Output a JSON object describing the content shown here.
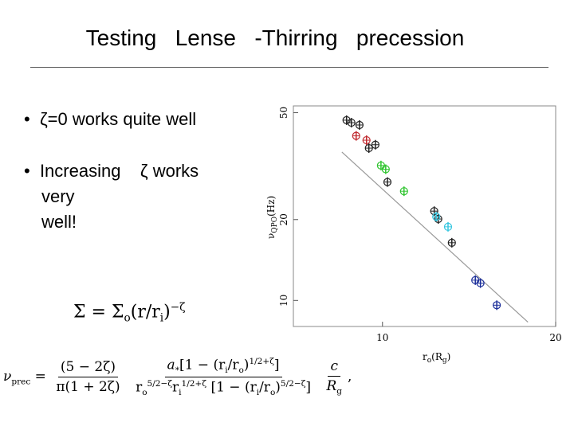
{
  "header": {
    "title": "Testing   Lense   -Thirring   precession"
  },
  "bullets": [
    {
      "lines": [
        "ζ=0 works quite well"
      ]
    },
    {
      "lines": [
        "Increasing    ζ works",
        "very",
        "well!"
      ]
    }
  ],
  "equation_1": {
    "parts": [
      "Σ = Σ",
      "o",
      "(r/r",
      "i",
      ")",
      "−ζ"
    ]
  },
  "equation_2": {
    "lhs": [
      "ν",
      "prec"
    ],
    "eq": "=",
    "frac1": {
      "num": "(5 − 2ζ)",
      "den": "π(1 + 2ζ)"
    },
    "frac2": {
      "num": [
        "a",
        "*",
        "[1 − (r",
        "i",
        "/r",
        "o",
        ")",
        "1/2+ζ",
        "]"
      ],
      "den": [
        "r",
        "o",
        "5/2−ζ",
        "r",
        "i",
        "1/2+ζ",
        "[1 − (r",
        "i",
        "/r",
        "o",
        ")",
        "5/2−ζ",
        "]"
      ]
    },
    "frac3": {
      "num": "c",
      "den": [
        "R",
        "g"
      ]
    },
    "tail": ","
  },
  "chart_data": {
    "type": "scatter",
    "xlabel": [
      "r",
      "o",
      "(R",
      "g",
      ")"
    ],
    "ylabel": [
      "ν",
      "QPO",
      "(Hz)"
    ],
    "xscale": "log",
    "yscale": "log",
    "xlim": [
      7,
      20
    ],
    "ylim": [
      8,
      53
    ],
    "xticks": [
      10,
      20
    ],
    "yticks": [
      10,
      20,
      50
    ],
    "series": [
      {
        "color": "#222222",
        "x": [
          8.66,
          8.83,
          9.12,
          9.47,
          9.72,
          10.2,
          12.3,
          12.5,
          13.2
        ],
        "values": [
          46.9,
          45.9,
          45.0,
          36.9,
          38.0,
          27.6,
          21.5,
          20.1,
          16.4
        ]
      },
      {
        "color": "#c0282d",
        "x": [
          9.0,
          9.38
        ],
        "values": [
          41,
          39.5
        ]
      },
      {
        "color": "#2ec42e",
        "x": [
          9.94,
          10.13,
          10.9
        ],
        "values": [
          31.8,
          30.8,
          25.5
        ]
      },
      {
        "color": "#34c6e0",
        "x": [
          12.4,
          13.0
        ],
        "values": [
          20.5,
          18.8
        ]
      },
      {
        "color": "#1c2f9a",
        "x": [
          14.5,
          14.8,
          15.8
        ],
        "values": [
          11.9,
          11.6,
          9.6
        ]
      }
    ],
    "fit": {
      "color": "#999999",
      "x": [
        8.5,
        17.9
      ],
      "values": [
        35.7,
        8.3
      ]
    }
  }
}
